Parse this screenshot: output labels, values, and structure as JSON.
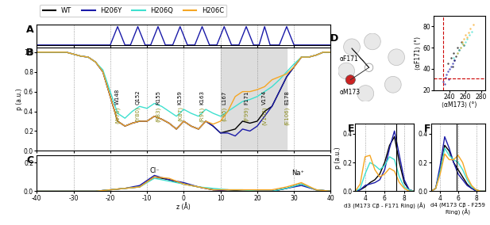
{
  "chart_data": [
    {
      "panel": "A",
      "type": "line",
      "tick_labels": false,
      "grid": true,
      "xlim": [
        -40,
        40
      ],
      "xticks": [
        -40,
        -30,
        -20,
        -10,
        0,
        10,
        20,
        30,
        40
      ],
      "ylim": [
        0,
        1.1
      ],
      "yticks": [],
      "x": [
        -40,
        -20,
        -18,
        -16,
        -14.5,
        -12.5,
        -10.5,
        -9,
        -7,
        -5,
        -3,
        -1,
        1,
        3,
        5,
        7,
        9,
        11,
        13,
        15,
        17,
        19,
        20.5,
        22,
        23.5,
        26,
        28,
        30,
        40
      ],
      "series": [
        {
          "color": "#1a1aa8",
          "values": [
            0,
            0,
            1,
            0,
            0,
            1,
            0,
            0,
            1,
            0,
            0,
            1,
            0,
            0,
            1,
            0,
            0,
            1,
            0,
            0,
            1,
            0,
            0,
            1,
            0,
            0,
            1,
            0,
            0
          ]
        }
      ]
    },
    {
      "panel": "B",
      "type": "line",
      "grid": true,
      "legend": "upper left",
      "ylabel": "p (a.u.)",
      "xlim": [
        -40,
        40
      ],
      "xticks": [
        -40,
        -30,
        -20,
        -10,
        0,
        10,
        20,
        30,
        40
      ],
      "ylim": [
        0,
        1.05
      ],
      "yticks": [
        {
          "value": 0,
          "label": "0.0"
        },
        {
          "value": 0.2,
          "label": "0.2"
        },
        {
          "value": 0.4,
          "label": "0.4"
        },
        {
          "value": 0.6,
          "label": "0.6"
        },
        {
          "value": 0.8,
          "label": "0.8"
        },
        {
          "value": 1,
          "label": "1.0"
        }
      ],
      "highlight": [
        10,
        28
      ],
      "residues": [
        {
          "name": "W148",
          "alt": "(W76)",
          "z": -18
        },
        {
          "name": "Q152",
          "alt": "(Y80)",
          "z": -12.5
        },
        {
          "name": "R155",
          "alt": "(R83)",
          "z": -7
        },
        {
          "name": "K159",
          "alt": "(K87)",
          "z": -1
        },
        {
          "name": "K163",
          "alt": "(R91)",
          "z": 5
        },
        {
          "name": "L167",
          "alt": "(L95)",
          "z": 11
        },
        {
          "name": "F171",
          "alt": "(F99)",
          "z": 17
        },
        {
          "name": "V174",
          "alt": "(V102)",
          "z": 22
        },
        {
          "name": "E178",
          "alt": "(E106)",
          "z": 28
        }
      ],
      "x": [
        -40,
        -38,
        -36,
        -34,
        -32,
        -30,
        -28,
        -26,
        -24,
        -22,
        -20,
        -18,
        -16,
        -14,
        -12,
        -10,
        -8,
        -6,
        -4,
        -2,
        0,
        2,
        4,
        6,
        8,
        10,
        12,
        14,
        16,
        18,
        20,
        22,
        24,
        26,
        28,
        30,
        32,
        34,
        36,
        38,
        40
      ],
      "series": [
        {
          "name": "WT",
          "color": "#000000",
          "values": [
            1.0,
            1.0,
            1.0,
            1.0,
            1.0,
            0.98,
            0.96,
            0.95,
            0.9,
            0.8,
            0.55,
            0.3,
            0.25,
            0.28,
            0.3,
            0.3,
            0.35,
            0.32,
            0.28,
            0.22,
            0.3,
            0.25,
            0.22,
            0.3,
            0.25,
            0.18,
            0.2,
            0.22,
            0.3,
            0.28,
            0.3,
            0.4,
            0.45,
            0.6,
            0.75,
            0.85,
            0.95,
            0.95,
            0.97,
            1.0,
            1.0
          ]
        },
        {
          "name": "H206Y",
          "color": "#1a1aa8",
          "values": [
            1.0,
            1.0,
            1.0,
            1.0,
            1.0,
            0.98,
            0.96,
            0.95,
            0.9,
            0.8,
            0.55,
            0.3,
            0.25,
            0.28,
            0.3,
            0.3,
            0.35,
            0.32,
            0.28,
            0.22,
            0.3,
            0.25,
            0.22,
            0.3,
            0.25,
            0.18,
            0.18,
            0.15,
            0.22,
            0.2,
            0.25,
            0.35,
            0.45,
            0.6,
            0.75,
            0.85,
            0.95,
            0.95,
            0.97,
            1.0,
            1.0
          ]
        },
        {
          "name": "H206Q",
          "color": "#3ee0cf",
          "values": [
            1.0,
            1.0,
            1.0,
            1.0,
            1.0,
            0.98,
            0.96,
            0.95,
            0.9,
            0.82,
            0.6,
            0.38,
            0.33,
            0.4,
            0.45,
            0.43,
            0.48,
            0.45,
            0.4,
            0.35,
            0.42,
            0.38,
            0.35,
            0.42,
            0.38,
            0.35,
            0.4,
            0.45,
            0.5,
            0.52,
            0.55,
            0.6,
            0.65,
            0.72,
            0.8,
            0.88,
            0.95,
            0.95,
            0.97,
            1.0,
            1.0
          ]
        },
        {
          "name": "H206C",
          "color": "#f5a623",
          "values": [
            1.0,
            1.0,
            1.0,
            1.0,
            1.0,
            0.98,
            0.96,
            0.95,
            0.9,
            0.8,
            0.55,
            0.3,
            0.25,
            0.28,
            0.3,
            0.3,
            0.35,
            0.32,
            0.28,
            0.22,
            0.3,
            0.25,
            0.22,
            0.3,
            0.27,
            0.3,
            0.4,
            0.55,
            0.6,
            0.6,
            0.62,
            0.65,
            0.72,
            0.75,
            0.78,
            0.85,
            0.95,
            0.95,
            0.97,
            1.0,
            1.0
          ]
        }
      ]
    },
    {
      "panel": "C",
      "type": "line",
      "grid": true,
      "xlabel": "z (Å)",
      "xlim": [
        -40,
        40
      ],
      "xticks": [
        -40,
        -30,
        -20,
        -10,
        0,
        10,
        20,
        30,
        40
      ],
      "ylim": [
        0,
        0.25
      ],
      "yticks": [
        {
          "value": 0,
          "label": "0.0"
        },
        {
          "value": 0.2,
          "label": "0.2"
        }
      ],
      "annotations": [
        {
          "text": "Cl⁻",
          "x": -8,
          "y": 0.12
        },
        {
          "text": "Na⁺",
          "x": 31,
          "y": 0.1
        }
      ],
      "x": [
        -40,
        -36,
        -32,
        -28,
        -24,
        -20,
        -16,
        -12,
        -8,
        -4,
        0,
        4,
        8,
        12,
        16,
        20,
        24,
        28,
        32,
        36,
        40
      ],
      "series": [
        {
          "name": "WT",
          "color": "#000000",
          "values": [
            0,
            0,
            0,
            0,
            0,
            0.01,
            0.02,
            0.03,
            0.1,
            0.08,
            0.05,
            0.03,
            0.01,
            0.01,
            0,
            0,
            0,
            0.02,
            0.05,
            0.01,
            0
          ]
        },
        {
          "name": "H206Y",
          "color": "#1a1aa8",
          "values": [
            0,
            0,
            0,
            0,
            0,
            0.01,
            0.02,
            0.04,
            0.11,
            0.08,
            0.06,
            0.03,
            0.01,
            0,
            0,
            0,
            0,
            0.02,
            0.04,
            0.01,
            0
          ]
        },
        {
          "name": "H206Q",
          "color": "#3ee0cf",
          "values": [
            0,
            0,
            0,
            0,
            0,
            0.01,
            0.02,
            0.03,
            0.09,
            0.07,
            0.05,
            0.03,
            0.02,
            0.01,
            0.01,
            0,
            0,
            0.02,
            0.05,
            0.01,
            0
          ]
        },
        {
          "name": "H206C",
          "color": "#f5a623",
          "values": [
            0,
            0,
            0,
            0,
            0,
            0.01,
            0.02,
            0.03,
            0.1,
            0.09,
            0.05,
            0.03,
            0.01,
            0.01,
            0.01,
            0.01,
            0.01,
            0.03,
            0.06,
            0.01,
            0
          ]
        }
      ]
    },
    {
      "panel": "D",
      "type": "scatter",
      "schematic_labels": [
        "αF171",
        "αM173"
      ],
      "xlabel": "⟨αM173⟩ (°)",
      "ylabel": "⟨αF171⟩ (°)",
      "xlim": [
        220,
        285
      ],
      "xticks": [
        240,
        260,
        280
      ],
      "ylim": [
        20,
        90
      ],
      "yticks": [
        20,
        40,
        60,
        80
      ],
      "thresholds": {
        "x": 232,
        "y": 31
      },
      "series": [
        {
          "name": "WT",
          "color": "#000000",
          "x": [
            238,
            242,
            245,
            248,
            250,
            252,
            255,
            246,
            258,
            244
          ],
          "values": [
            45,
            50,
            55,
            52,
            60,
            58,
            65,
            48,
            62,
            42
          ]
        },
        {
          "name": "H206Y",
          "color": "#1a1aa8",
          "x": [
            232,
            235,
            236,
            238,
            240,
            242,
            244,
            239,
            246,
            234
          ],
          "values": [
            28,
            32,
            35,
            38,
            40,
            42,
            45,
            30,
            48,
            26
          ]
        },
        {
          "name": "H206Q",
          "color": "#3ee0cf",
          "x": [
            245,
            250,
            254,
            258,
            260,
            262,
            265,
            252,
            268,
            256
          ],
          "values": [
            50,
            55,
            60,
            62,
            65,
            68,
            72,
            58,
            75,
            64
          ]
        },
        {
          "name": "H206C",
          "color": "#f5a623",
          "x": [
            250,
            254,
            256,
            258,
            262,
            264,
            266,
            260,
            270,
            257
          ],
          "values": [
            55,
            60,
            65,
            68,
            70,
            74,
            78,
            72,
            82,
            63
          ]
        }
      ]
    },
    {
      "panel": "E",
      "type": "line",
      "xlabel": "d3 (M173 Cβ - F171 Ring) (Å)",
      "ylabel": "p (a.u.)",
      "xlim": [
        3,
        9
      ],
      "xticks": [
        4,
        6,
        8
      ],
      "ylim": [
        0,
        0.47
      ],
      "yticks": [
        {
          "value": 0,
          "label": "0.0"
        },
        {
          "value": 0.2,
          "label": "0.2"
        },
        {
          "value": 0.4,
          "label": "0.4"
        }
      ],
      "reference_line": 7.2,
      "x": [
        3,
        3.5,
        4,
        4.5,
        5,
        5.5,
        6,
        6.5,
        7,
        7.5,
        8,
        8.5,
        9
      ],
      "series": [
        {
          "name": "WT",
          "color": "#000000",
          "values": [
            0,
            0.01,
            0.03,
            0.06,
            0.08,
            0.12,
            0.2,
            0.32,
            0.38,
            0.2,
            0.06,
            0.01,
            0
          ]
        },
        {
          "name": "H206Y",
          "color": "#1a1aa8",
          "values": [
            0,
            0.01,
            0.04,
            0.05,
            0.06,
            0.08,
            0.15,
            0.3,
            0.42,
            0.25,
            0.08,
            0.01,
            0
          ]
        },
        {
          "name": "H206Q",
          "color": "#3ee0cf",
          "values": [
            0,
            0.02,
            0.12,
            0.2,
            0.18,
            0.15,
            0.18,
            0.24,
            0.22,
            0.1,
            0.03,
            0.01,
            0
          ]
        },
        {
          "name": "H206C",
          "color": "#f5a623",
          "values": [
            0,
            0.05,
            0.24,
            0.25,
            0.15,
            0.1,
            0.12,
            0.16,
            0.14,
            0.06,
            0.02,
            0,
            0
          ]
        }
      ]
    },
    {
      "panel": "F",
      "type": "line",
      "xlabel": "d4 (M173 Cβ - F259 Ring) (Å)",
      "xlim": [
        3,
        9
      ],
      "xticks": [
        4,
        6,
        8
      ],
      "ylim": [
        0,
        0.47
      ],
      "yticks": [
        {
          "value": 0,
          "label": "0.0"
        },
        {
          "value": 0.2,
          "label": "0.2"
        },
        {
          "value": 0.4,
          "label": "0.4"
        }
      ],
      "reference_line": 5.8,
      "x": [
        3,
        3.5,
        4,
        4.5,
        5,
        5.5,
        6,
        6.5,
        7,
        7.5,
        8,
        8.5,
        9
      ],
      "series": [
        {
          "name": "WT",
          "color": "#000000",
          "values": [
            0,
            0.02,
            0.15,
            0.32,
            0.28,
            0.2,
            0.15,
            0.1,
            0.05,
            0.02,
            0.01,
            0,
            0
          ]
        },
        {
          "name": "H206Y",
          "color": "#1a1aa8",
          "values": [
            0,
            0.02,
            0.18,
            0.38,
            0.3,
            0.2,
            0.12,
            0.08,
            0.04,
            0.02,
            0,
            0,
            0
          ]
        },
        {
          "name": "H206Q",
          "color": "#3ee0cf",
          "values": [
            0,
            0.02,
            0.14,
            0.3,
            0.25,
            0.22,
            0.2,
            0.15,
            0.08,
            0.03,
            0.01,
            0,
            0
          ]
        },
        {
          "name": "H206C",
          "color": "#f5a623",
          "values": [
            0,
            0.02,
            0.12,
            0.26,
            0.22,
            0.22,
            0.25,
            0.2,
            0.1,
            0.04,
            0.01,
            0,
            0
          ]
        }
      ]
    }
  ]
}
